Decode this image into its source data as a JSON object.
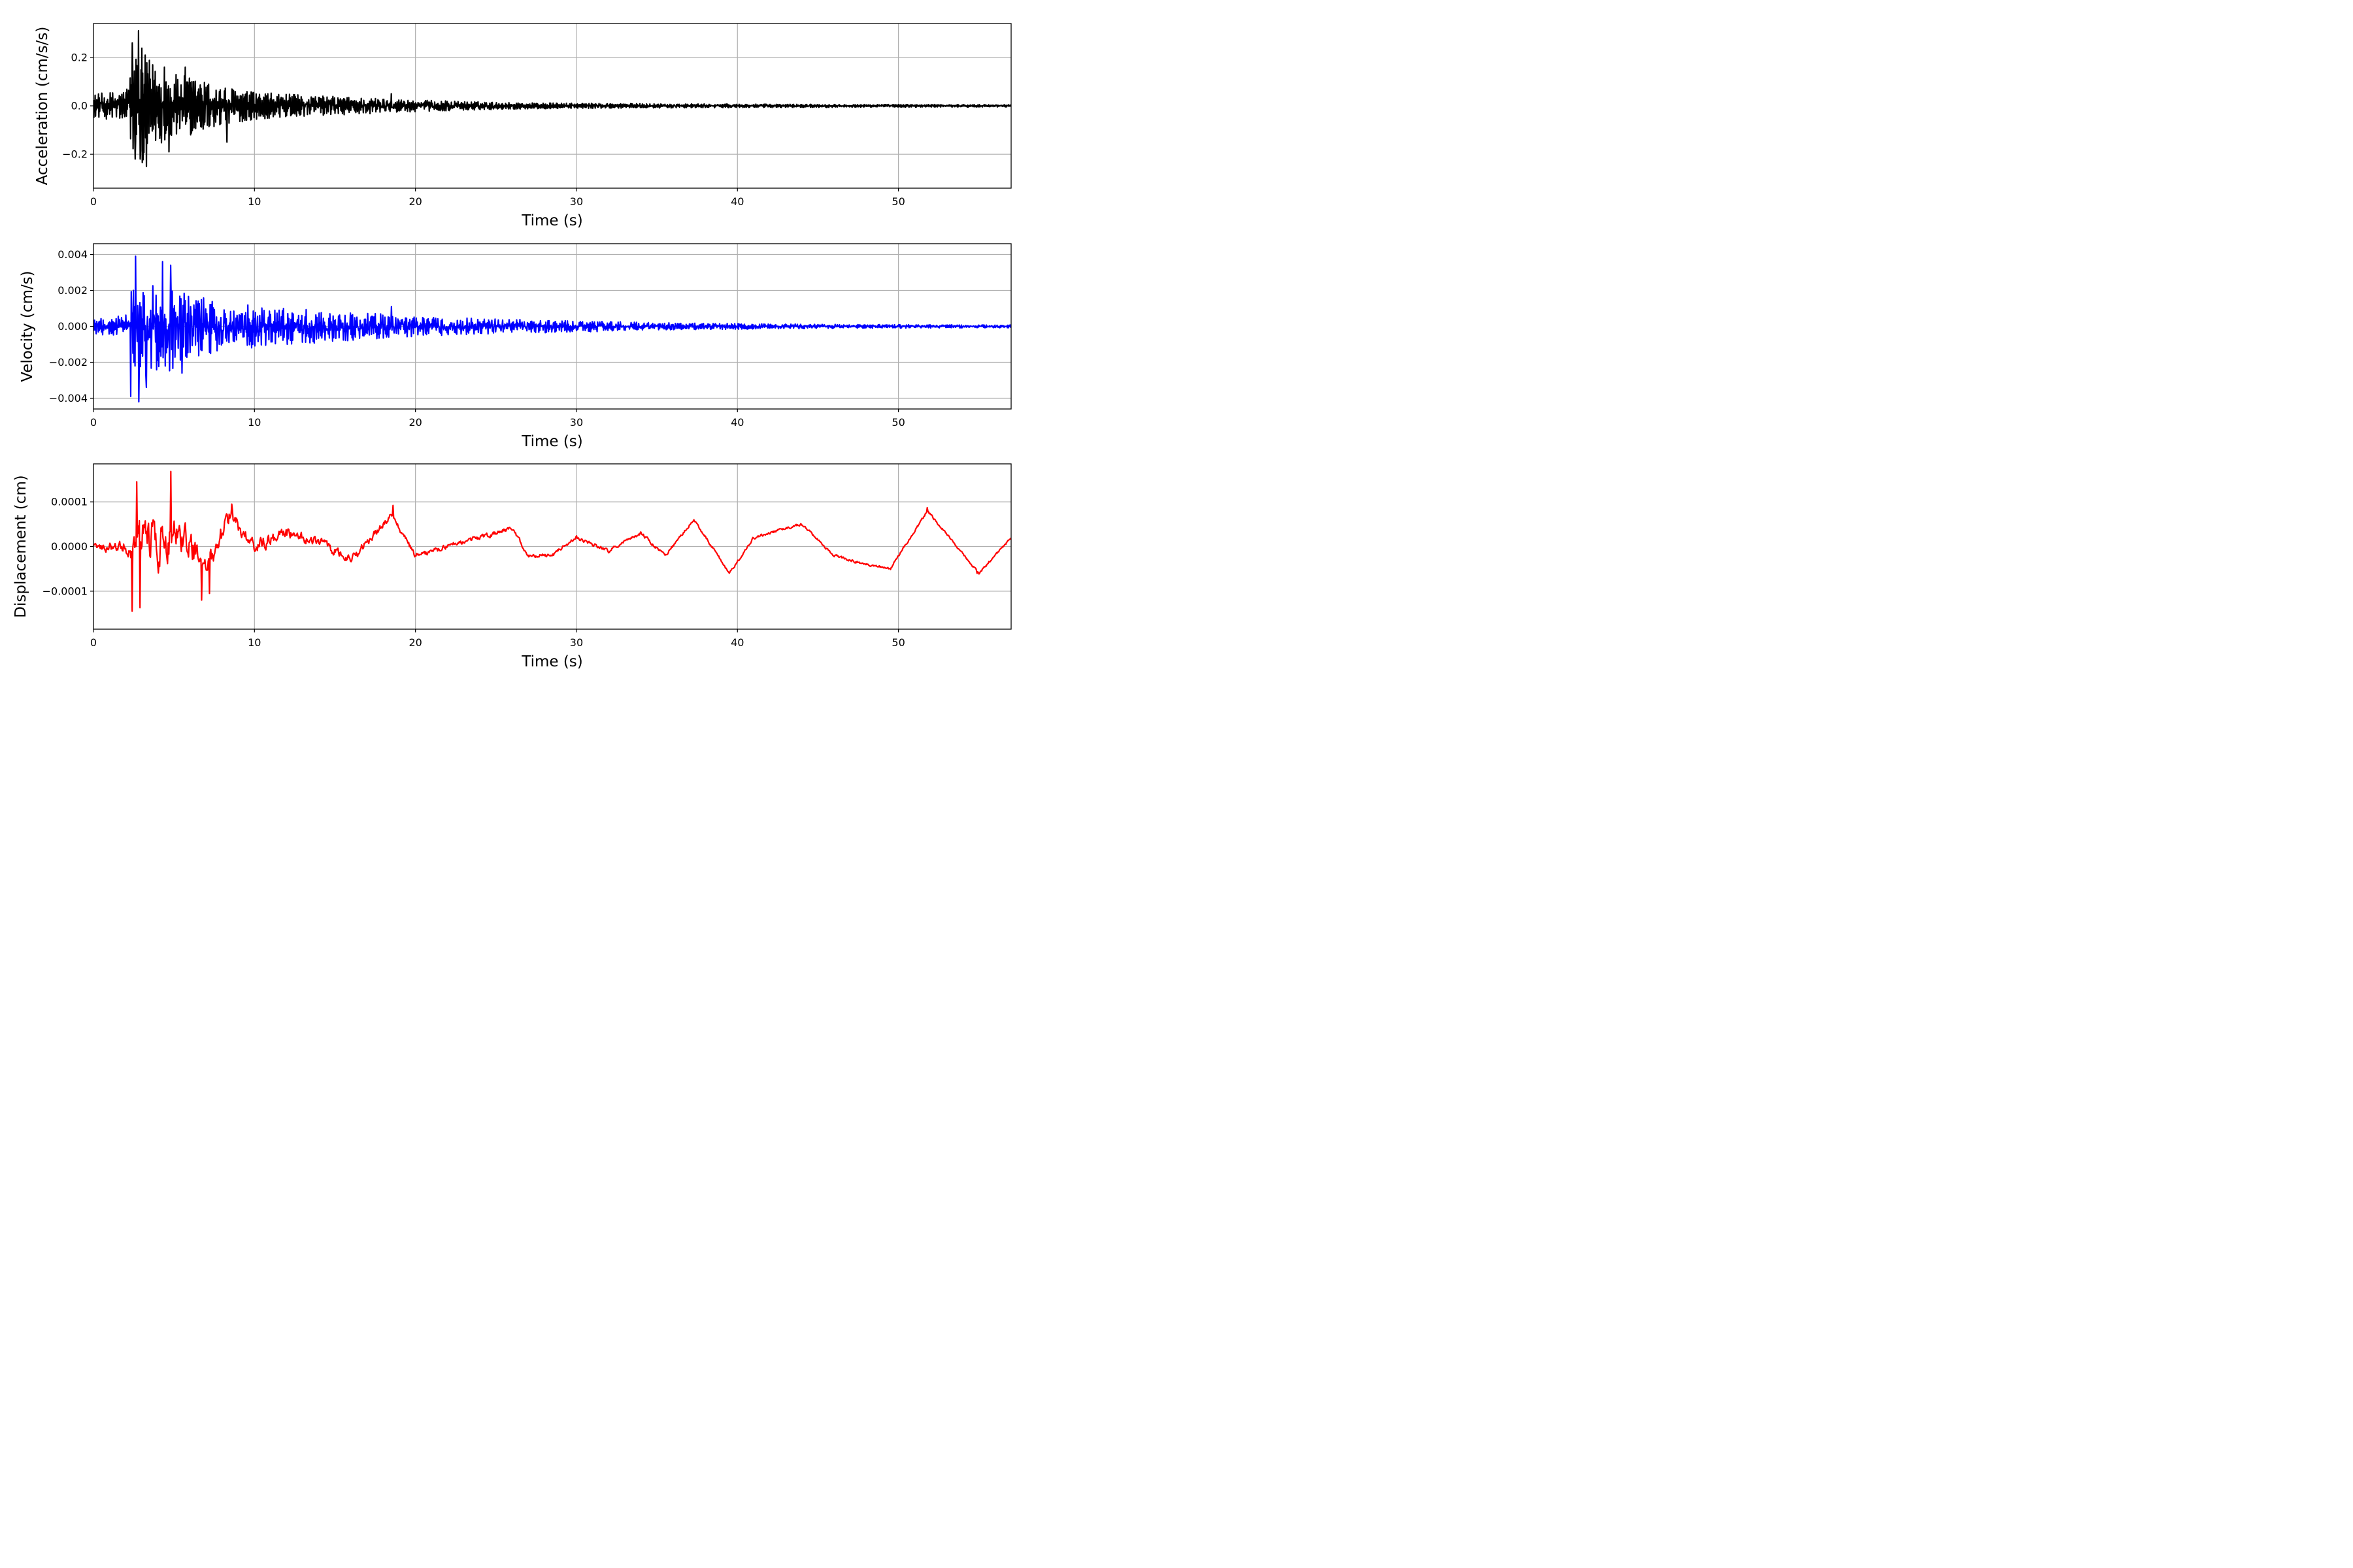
{
  "chart_data": [
    {
      "type": "line",
      "xlabel": "Time (s)",
      "ylabel": "Acceleration (cm/s/s)",
      "color": "#000000",
      "xlim": [
        0,
        57
      ],
      "ylim": [
        -0.34,
        0.34
      ],
      "xticks": [
        0,
        10,
        20,
        30,
        40,
        50
      ],
      "xtick_labels": [
        "0",
        "10",
        "20",
        "30",
        "40",
        "50"
      ],
      "yticks": [
        -0.2,
        0.0,
        0.2
      ],
      "ytick_labels": [
        "−0.2",
        "0.0",
        "0.2"
      ],
      "grid": true,
      "envelope": {
        "x": [
          0,
          2,
          2.5,
          2.9,
          3.3,
          4.5,
          6,
          8,
          10,
          13,
          16,
          20,
          25,
          30,
          35,
          40,
          45,
          50,
          57
        ],
        "y": [
          0.06,
          0.08,
          0.26,
          0.31,
          0.25,
          0.17,
          0.15,
          0.1,
          0.07,
          0.055,
          0.045,
          0.03,
          0.018,
          0.013,
          0.011,
          0.009,
          0.008,
          0.007,
          0.006
        ]
      },
      "peaks": [
        {
          "x": 2.4,
          "y": 0.26
        },
        {
          "x": 2.8,
          "y": 0.31
        },
        {
          "x": 3.3,
          "y": 0.27
        },
        {
          "x": 2.6,
          "y": -0.22
        },
        {
          "x": 2.9,
          "y": -0.22
        },
        {
          "x": 3.3,
          "y": -0.25
        },
        {
          "x": 4.4,
          "y": 0.16
        },
        {
          "x": 5.7,
          "y": 0.16
        },
        {
          "x": 4.7,
          "y": -0.19
        },
        {
          "x": 8.3,
          "y": -0.15
        },
        {
          "x": 18.5,
          "y": 0.05
        }
      ]
    },
    {
      "type": "line",
      "xlabel": "Time (s)",
      "ylabel": "Velocity (cm/s)",
      "color": "#0000ff",
      "xlim": [
        0,
        57
      ],
      "ylim": [
        -0.0046,
        0.0046
      ],
      "xticks": [
        0,
        10,
        20,
        30,
        40,
        50
      ],
      "xtick_labels": [
        "0",
        "10",
        "20",
        "30",
        "40",
        "50"
      ],
      "yticks": [
        -0.004,
        -0.002,
        0.0,
        0.002,
        0.004
      ],
      "ytick_labels": [
        "−0.004",
        "−0.002",
        "0.000",
        "0.002",
        "0.004"
      ],
      "grid": true,
      "envelope": {
        "x": [
          0,
          2,
          2.5,
          3,
          3.5,
          4.5,
          6,
          8,
          10,
          13,
          16,
          20,
          25,
          30,
          35,
          40,
          45,
          50,
          57
        ],
        "y": [
          0.0005,
          0.0008,
          0.0036,
          0.0038,
          0.0032,
          0.0033,
          0.0022,
          0.0017,
          0.0015,
          0.0012,
          0.001,
          0.0007,
          0.0005,
          0.0004,
          0.00025,
          0.0002,
          0.00015,
          0.00012,
          0.0001
        ]
      },
      "peaks": [
        {
          "x": 2.6,
          "y": 0.0039
        },
        {
          "x": 2.3,
          "y": -0.0039
        },
        {
          "x": 2.8,
          "y": -0.0042
        },
        {
          "x": 4.3,
          "y": 0.0036
        },
        {
          "x": 4.8,
          "y": 0.0034
        },
        {
          "x": 3.3,
          "y": -0.0034
        },
        {
          "x": 5.5,
          "y": -0.0026
        },
        {
          "x": 18.5,
          "y": 0.0011
        }
      ]
    },
    {
      "type": "line",
      "xlabel": "Time (s)",
      "ylabel": "Displacement (cm)",
      "color": "#ff0000",
      "xlim": [
        0,
        57
      ],
      "ylim": [
        -0.000185,
        0.000185
      ],
      "xticks": [
        0,
        10,
        20,
        30,
        40,
        50
      ],
      "xtick_labels": [
        "0",
        "10",
        "20",
        "30",
        "40",
        "50"
      ],
      "yticks": [
        -0.0001,
        0.0,
        0.0001
      ],
      "ytick_labels": [
        "−0.0001",
        "0.0000",
        "0.0001"
      ],
      "grid": true,
      "baseline": {
        "x": [
          0,
          2,
          3,
          4,
          5,
          6,
          7,
          8.5,
          10,
          12,
          14,
          16,
          18.5,
          20,
          22,
          24,
          26,
          27,
          28.5,
          30,
          32,
          34,
          35.5,
          37.3,
          39.5,
          41,
          44,
          46,
          48,
          49.5,
          51.8,
          55,
          57
        ],
        "y": [
          0,
          0,
          1e-05,
          0,
          3e-05,
          0,
          -5e-05,
          7e-05,
          0,
          3e-05,
          1e-05,
          -3e-05,
          7e-05,
          -2e-05,
          0,
          2e-05,
          4e-05,
          -2e-05,
          -2e-05,
          2e-05,
          -1e-05,
          3e-05,
          -2e-05,
          6e-05,
          -6e-05,
          2e-05,
          5e-05,
          -2e-05,
          -4e-05,
          -5e-05,
          8e-05,
          -6e-05,
          2e-05
        ]
      },
      "noise": {
        "x": [
          0,
          2,
          3,
          5,
          7,
          10,
          15,
          20,
          30,
          40,
          57
        ],
        "y": [
          8e-06,
          2e-05,
          7e-05,
          5e-05,
          3e-05,
          1.8e-05,
          1.2e-05,
          8e-06,
          5e-06,
          4e-06,
          3e-06
        ]
      },
      "peaks": [
        {
          "x": 2.7,
          "y": 0.000145
        },
        {
          "x": 4.8,
          "y": 0.000168
        },
        {
          "x": 2.4,
          "y": -0.000145
        },
        {
          "x": 2.9,
          "y": -0.000137
        },
        {
          "x": 6.7,
          "y": -0.00012
        },
        {
          "x": 7.2,
          "y": -0.000105
        },
        {
          "x": 8.6,
          "y": 9.5e-05
        },
        {
          "x": 18.6,
          "y": 9.2e-05
        },
        {
          "x": 51.8,
          "y": 8.7e-05
        },
        {
          "x": 54.9,
          "y": -6e-05
        }
      ]
    }
  ]
}
